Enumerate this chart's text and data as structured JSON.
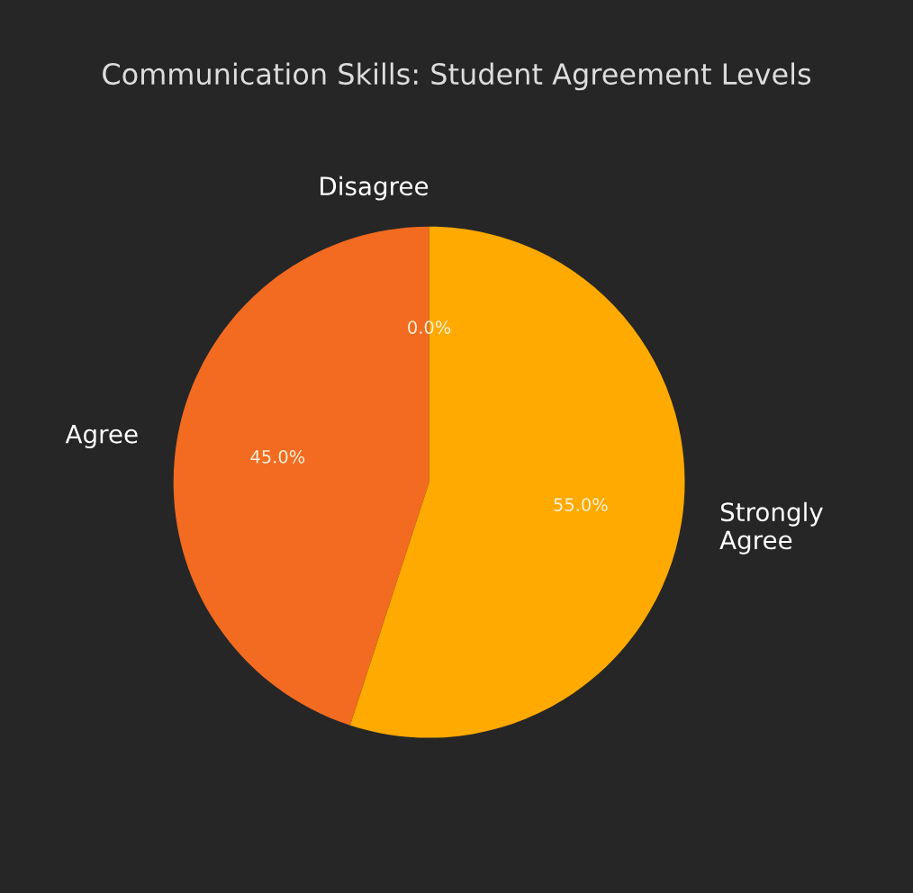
{
  "chart_data": {
    "type": "pie",
    "title": "Communication Skills: Student Agreement Levels",
    "categories": [
      "Disagree",
      "Agree",
      "Strongly\nAgree"
    ],
    "values": [
      0.0,
      45.0,
      55.0
    ],
    "value_labels": [
      "0.0%",
      "45.0%",
      "55.0%"
    ],
    "colors": [
      "#e03c28",
      "#f26b21",
      "#ffaa00"
    ]
  }
}
